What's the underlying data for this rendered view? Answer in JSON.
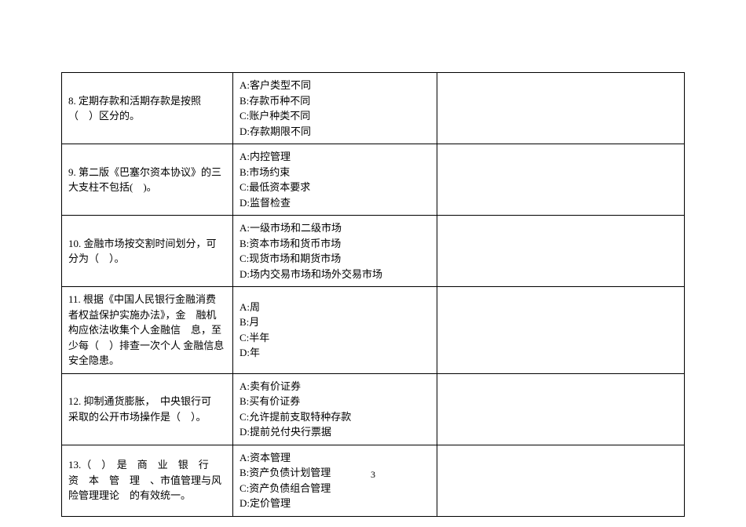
{
  "page_number": "3",
  "rows": [
    {
      "question": "8. 定期存款和活期存款是按照（　）区分的。",
      "options": [
        "A:客户类型不同",
        "B:存款币种不同",
        "C:账户种类不同",
        "D:存款期限不同"
      ]
    },
    {
      "question": "9. 第二版《巴塞尔资本协议》的三大支柱不包括(　)。",
      "options": [
        "A:内控管理",
        "B:市场约束",
        "C:最低资本要求",
        "D:监督检查"
      ]
    },
    {
      "question": "10. 金融市场按交割时间划分，可分为（　）。",
      "options": [
        "A:一级市场和二级市场",
        "B:资本市场和货币市场",
        "C:现货市场和期货市场",
        "D:场内交易市场和场外交易市场"
      ]
    },
    {
      "question": "11. 根据《中国人民银行金融消费者权益保护实施办法》，金　融机构应依法收集个人金融信　息，至少每（　）排查一次个人 金融信息安全隐患。",
      "options": [
        "A:周",
        "B:月",
        "C:半年",
        "D:年"
      ]
    },
    {
      "question": "12. 抑制通货膨胀，　中央银行可　采取的公开市场操作是（　）。",
      "options": [
        "A:卖有价证券",
        "B:买有价证券",
        "C:允许提前支取特种存款",
        "D:提前兑付央行票据"
      ]
    },
    {
      "question": "13.（　）　是　商　业　银　行　资　本　管　理　、市值管理与风险管理理论　的有效统一。",
      "options": [
        "A:资本管理",
        "B:资产负债计划管理",
        "C:资产负债组合管理",
        "D:定价管理"
      ]
    }
  ]
}
